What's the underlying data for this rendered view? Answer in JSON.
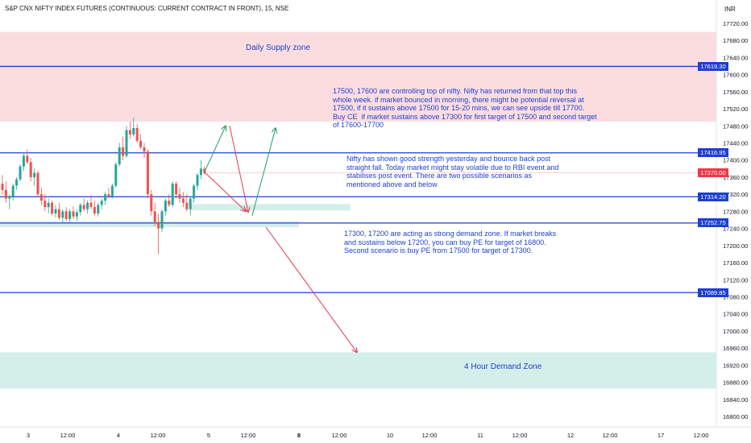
{
  "title": "S&P CNX NIFTY INDEX FUTURES (CONTINUOUS: CURRENT CONTRACT IN FRONT), 15, NSE",
  "currency": "INR",
  "colors": {
    "up": "#26a69a",
    "down": "#ef5350",
    "supply_zone": "#fbdde0",
    "demand_zone": "#d4efe9",
    "level_line": "#1e3fd0",
    "current_price": "#f23645",
    "note_text": "#1e3fd0"
  },
  "chart_data": {
    "type": "candlestick",
    "y_ticks": [
      "17720.00",
      "17680.00",
      "17640.00",
      "17600.00",
      "17560.00",
      "17520.00",
      "17480.00",
      "17440.00",
      "17400.00",
      "17360.00",
      "17320.00",
      "17280.00",
      "17240.00",
      "17200.00",
      "17160.00",
      "17120.00",
      "17080.00",
      "17040.00",
      "17000.00",
      "16960.00",
      "16920.00",
      "16880.00",
      "16840.00",
      "16800.00"
    ],
    "ylim": [
      16790,
      17740
    ],
    "x_ticks": [
      "3",
      "12:00",
      "4",
      "12:00",
      "5",
      "12:00",
      "8",
      "12:00",
      "10",
      "12:00",
      "11",
      "12:00",
      "12",
      "12:00",
      "17",
      "12:00"
    ],
    "levels": [
      17619.3,
      17416.95,
      17314.2,
      17252.75,
      17089.85
    ],
    "current_price": 17370.0,
    "price_labels": [
      "17619.30",
      "17416.95",
      "17370.00",
      "17314.20",
      "17252.75",
      "17089.85"
    ],
    "zones": [
      {
        "name": "Daily Supply zone",
        "low": 17490,
        "high": 17700
      },
      {
        "name": "4 Hour Demand Zone",
        "low": 16865,
        "high": 16950
      },
      {
        "name": "",
        "low": 17243,
        "high": 17257
      },
      {
        "name": "",
        "low": 17282,
        "high": 17297
      }
    ],
    "candles": [
      {
        "o": 17345,
        "h": 17365,
        "l": 17320,
        "c": 17330
      },
      {
        "o": 17330,
        "h": 17350,
        "l": 17300,
        "c": 17310
      },
      {
        "o": 17310,
        "h": 17320,
        "l": 17285,
        "c": 17315
      },
      {
        "o": 17315,
        "h": 17345,
        "l": 17305,
        "c": 17340
      },
      {
        "o": 17340,
        "h": 17360,
        "l": 17330,
        "c": 17355
      },
      {
        "o": 17355,
        "h": 17390,
        "l": 17350,
        "c": 17385
      },
      {
        "o": 17385,
        "h": 17415,
        "l": 17375,
        "c": 17410
      },
      {
        "o": 17410,
        "h": 17425,
        "l": 17390,
        "c": 17395
      },
      {
        "o": 17395,
        "h": 17405,
        "l": 17350,
        "c": 17360
      },
      {
        "o": 17360,
        "h": 17380,
        "l": 17340,
        "c": 17370
      },
      {
        "o": 17370,
        "h": 17375,
        "l": 17315,
        "c": 17320
      },
      {
        "o": 17320,
        "h": 17335,
        "l": 17295,
        "c": 17305
      },
      {
        "o": 17305,
        "h": 17320,
        "l": 17280,
        "c": 17290
      },
      {
        "o": 17290,
        "h": 17310,
        "l": 17275,
        "c": 17300
      },
      {
        "o": 17300,
        "h": 17305,
        "l": 17270,
        "c": 17275
      },
      {
        "o": 17275,
        "h": 17295,
        "l": 17265,
        "c": 17285
      },
      {
        "o": 17285,
        "h": 17300,
        "l": 17260,
        "c": 17265
      },
      {
        "o": 17265,
        "h": 17285,
        "l": 17255,
        "c": 17280
      },
      {
        "o": 17280,
        "h": 17290,
        "l": 17258,
        "c": 17262
      },
      {
        "o": 17262,
        "h": 17285,
        "l": 17255,
        "c": 17280
      },
      {
        "o": 17280,
        "h": 17292,
        "l": 17262,
        "c": 17268
      },
      {
        "o": 17268,
        "h": 17285,
        "l": 17258,
        "c": 17278
      },
      {
        "o": 17278,
        "h": 17300,
        "l": 17270,
        "c": 17295
      },
      {
        "o": 17295,
        "h": 17310,
        "l": 17280,
        "c": 17285
      },
      {
        "o": 17285,
        "h": 17305,
        "l": 17275,
        "c": 17300
      },
      {
        "o": 17300,
        "h": 17318,
        "l": 17285,
        "c": 17290
      },
      {
        "o": 17290,
        "h": 17305,
        "l": 17270,
        "c": 17275
      },
      {
        "o": 17275,
        "h": 17300,
        "l": 17268,
        "c": 17295
      },
      {
        "o": 17295,
        "h": 17310,
        "l": 17285,
        "c": 17305
      },
      {
        "o": 17305,
        "h": 17325,
        "l": 17295,
        "c": 17320
      },
      {
        "o": 17320,
        "h": 17335,
        "l": 17310,
        "c": 17315
      },
      {
        "o": 17315,
        "h": 17345,
        "l": 17310,
        "c": 17340
      },
      {
        "o": 17340,
        "h": 17395,
        "l": 17335,
        "c": 17390
      },
      {
        "o": 17390,
        "h": 17440,
        "l": 17385,
        "c": 17430
      },
      {
        "o": 17430,
        "h": 17455,
        "l": 17400,
        "c": 17410
      },
      {
        "o": 17410,
        "h": 17480,
        "l": 17405,
        "c": 17470
      },
      {
        "o": 17470,
        "h": 17490,
        "l": 17450,
        "c": 17460
      },
      {
        "o": 17460,
        "h": 17500,
        "l": 17455,
        "c": 17475
      },
      {
        "o": 17475,
        "h": 17485,
        "l": 17440,
        "c": 17445
      },
      {
        "o": 17445,
        "h": 17460,
        "l": 17425,
        "c": 17430
      },
      {
        "o": 17430,
        "h": 17440,
        "l": 17405,
        "c": 17420
      },
      {
        "o": 17420,
        "h": 17425,
        "l": 17310,
        "c": 17320
      },
      {
        "o": 17320,
        "h": 17330,
        "l": 17270,
        "c": 17280
      },
      {
        "o": 17280,
        "h": 17300,
        "l": 17245,
        "c": 17255
      },
      {
        "o": 17255,
        "h": 17275,
        "l": 17180,
        "c": 17240
      },
      {
        "o": 17240,
        "h": 17285,
        "l": 17232,
        "c": 17280
      },
      {
        "o": 17280,
        "h": 17310,
        "l": 17270,
        "c": 17305
      },
      {
        "o": 17305,
        "h": 17320,
        "l": 17290,
        "c": 17295
      },
      {
        "o": 17295,
        "h": 17350,
        "l": 17290,
        "c": 17345
      },
      {
        "o": 17345,
        "h": 17350,
        "l": 17310,
        "c": 17320
      },
      {
        "o": 17320,
        "h": 17335,
        "l": 17300,
        "c": 17310
      },
      {
        "o": 17310,
        "h": 17325,
        "l": 17290,
        "c": 17300
      },
      {
        "o": 17300,
        "h": 17320,
        "l": 17280,
        "c": 17285
      },
      {
        "o": 17285,
        "h": 17315,
        "l": 17270,
        "c": 17310
      },
      {
        "o": 17310,
        "h": 17345,
        "l": 17300,
        "c": 17340
      },
      {
        "o": 17340,
        "h": 17370,
        "l": 17330,
        "c": 17365
      },
      {
        "o": 17365,
        "h": 17400,
        "l": 17355,
        "c": 17380
      },
      {
        "o": 17380,
        "h": 17385,
        "l": 17365,
        "c": 17370
      }
    ],
    "arrows": [
      {
        "color": "green",
        "from": [
          17372,
          "c57"
        ],
        "to": [
          17480,
          "t280"
        ]
      },
      {
        "color": "red",
        "from": [
          17480,
          "t285"
        ],
        "to": [
          17278,
          "t308"
        ]
      },
      {
        "color": "red",
        "from": [
          17372,
          "c57"
        ],
        "to": [
          17280,
          "t305"
        ]
      },
      {
        "color": "green",
        "from": [
          17270,
          "t313"
        ],
        "to": [
          17475,
          "t342"
        ]
      },
      {
        "color": "red",
        "from": [
          17243,
          "t330"
        ],
        "to": [
          16950,
          "t443"
        ]
      }
    ]
  },
  "notes": {
    "note1": "17500, 17600 are controlling top of nifty. Nifty has returned from that top this\nwhole week. if market bounced in morning, there might be potential reversal at\n17500, if it sustains above 17500 for 15-20 mins, we can see upside till 17700.\nBuy CE  if market sustains above 17300 for first target of 17500 and second target\nof 17600-17700",
    "note2": "Nifty has shown good strength yesterday and bounce back post\nstraight fall. Today market might stay volatile due to RBI event and\nstabilises post event. There are two possible scenarios as\nmentioned above and below",
    "note3": "17300, 17200 are acting as strong demand zone. If market breaks\nand sustains below 17200, you can buy PE for target of 16800.\nSecond scenario is buy PE from 17500 for target of 17300."
  },
  "zone_labels": {
    "supply": "Daily Supply zone",
    "demand": "4 Hour Demand Zone"
  }
}
